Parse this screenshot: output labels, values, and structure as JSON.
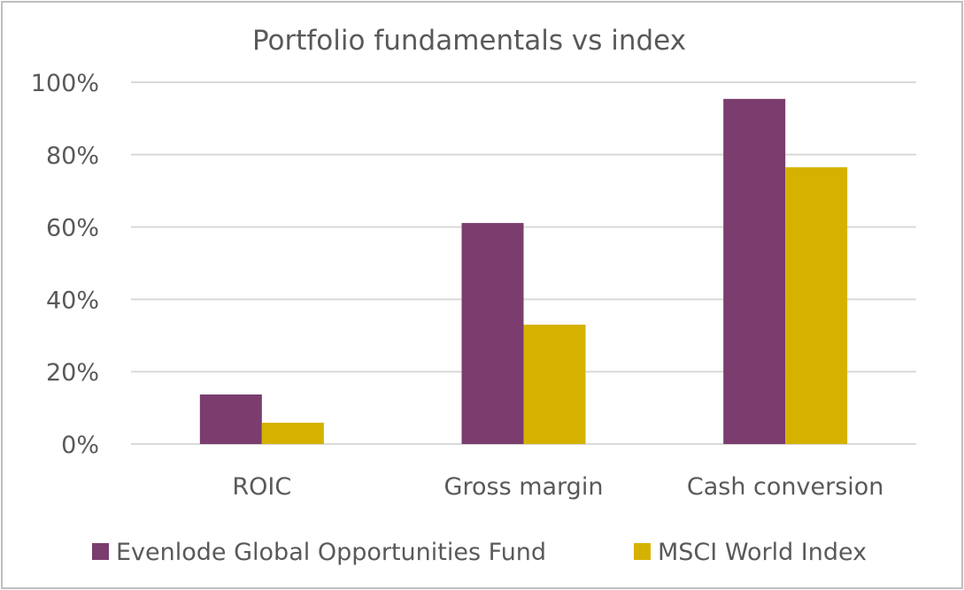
{
  "chart_data": {
    "type": "bar",
    "title": "Portfolio fundamentals vs index",
    "categories": [
      "ROIC",
      "Gross margin",
      "Cash conversion"
    ],
    "series": [
      {
        "name": "Evenlode Global Opportunities Fund",
        "values": [
          13.7,
          61.1,
          95.4
        ],
        "color": "#7a3d6e"
      },
      {
        "name": "MSCI World Index",
        "values": [
          5.9,
          33.0,
          76.5
        ],
        "color": "#d5b200"
      }
    ],
    "ylim": [
      0,
      100
    ],
    "yticks": [
      "0%",
      "20%",
      "40%",
      "60%",
      "80%",
      "100%"
    ],
    "y_unit": "%",
    "grid": true,
    "legend": "bottom"
  }
}
